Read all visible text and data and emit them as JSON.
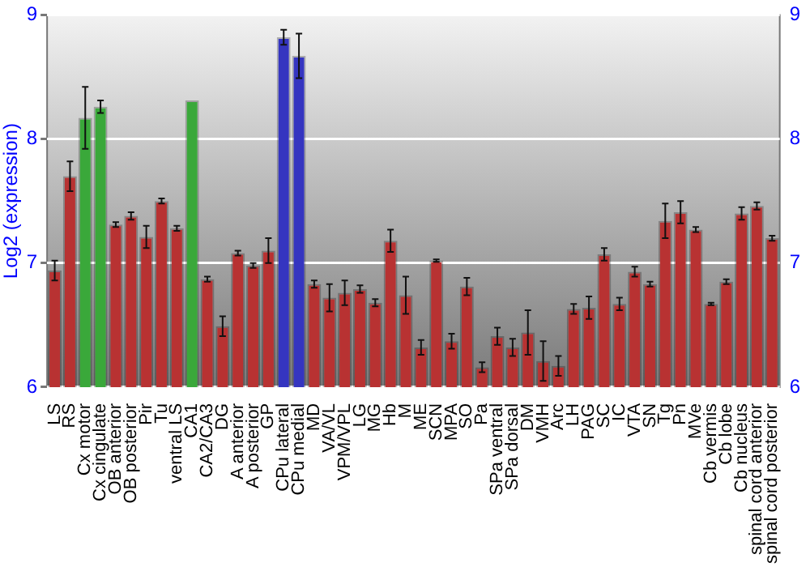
{
  "chart_data": {
    "type": "bar",
    "ylabel": "Log2 (expression)",
    "categories": [
      "LS",
      "RS",
      "Cx motor",
      "Cx cingulate",
      "OB anterior",
      "OB posterior",
      "Pir",
      "Tu",
      "ventral LS",
      "CA1",
      "CA2/CA3",
      "DG",
      "A anterior",
      "A posterior",
      "GP",
      "CPu lateral",
      "CPu medial",
      "MD",
      "VA/VL",
      "VPM/VPL",
      "LG",
      "MG",
      "Hb",
      "M",
      "ME",
      "SCN",
      "MPA",
      "SO",
      "Pa",
      "SPa ventral",
      "SPa dorsal",
      "DM",
      "VMH",
      "Arc",
      "LH",
      "PAG",
      "SC",
      "IC",
      "VTA",
      "SN",
      "Tg",
      "Pn",
      "MVe",
      "Cb vermis",
      "Cb lobe",
      "Cb nucleus",
      "spinal cord anterior",
      "spinal cord posterior"
    ],
    "values": [
      6.94,
      7.7,
      8.17,
      8.26,
      7.31,
      7.38,
      7.21,
      7.5,
      7.28,
      8.31,
      6.87,
      6.49,
      7.08,
      6.98,
      7.1,
      8.82,
      8.67,
      6.83,
      6.72,
      6.76,
      6.79,
      6.68,
      7.18,
      6.74,
      6.32,
      7.02,
      6.37,
      6.81,
      6.16,
      6.41,
      6.32,
      6.44,
      6.21,
      6.17,
      6.63,
      6.64,
      7.07,
      6.67,
      6.93,
      6.83,
      7.34,
      7.41,
      7.27,
      6.67,
      6.85,
      7.4,
      7.46,
      7.2
    ],
    "errors": [
      0.08,
      0.12,
      0.25,
      0.05,
      0.02,
      0.03,
      0.09,
      0.02,
      0.02,
      null,
      0.02,
      0.08,
      0.02,
      0.02,
      0.1,
      0.06,
      0.18,
      0.03,
      0.11,
      0.1,
      0.03,
      0.03,
      0.09,
      0.15,
      0.06,
      0.01,
      0.06,
      0.07,
      0.04,
      0.07,
      0.07,
      0.18,
      0.16,
      0.08,
      0.04,
      0.09,
      0.05,
      0.05,
      0.04,
      0.02,
      0.14,
      0.09,
      0.02,
      0.01,
      0.02,
      0.05,
      0.03,
      0.02
    ],
    "colors": [
      "#b83232",
      "#b83232",
      "#3aa83a",
      "#3aa83a",
      "#b83232",
      "#b83232",
      "#b83232",
      "#b83232",
      "#b83232",
      "#3aa83a",
      "#b83232",
      "#b83232",
      "#b83232",
      "#b83232",
      "#b83232",
      "#3535c0",
      "#3535c0",
      "#b83232",
      "#b83232",
      "#b83232",
      "#b83232",
      "#b83232",
      "#b83232",
      "#b83232",
      "#b83232",
      "#b83232",
      "#b83232",
      "#b83232",
      "#b83232",
      "#b83232",
      "#b83232",
      "#b83232",
      "#b83232",
      "#b83232",
      "#b83232",
      "#b83232",
      "#b83232",
      "#b83232",
      "#b83232",
      "#b83232",
      "#b83232",
      "#b83232",
      "#b83232",
      "#b83232",
      "#b83232",
      "#b83232",
      "#b83232",
      "#b83232"
    ],
    "ylim": [
      6,
      9
    ],
    "yticks": [
      6,
      7,
      8,
      9
    ],
    "y2lim": [
      6,
      9
    ],
    "y2ticks": [
      6,
      7,
      8,
      9
    ],
    "grid": "y",
    "legend": false
  }
}
